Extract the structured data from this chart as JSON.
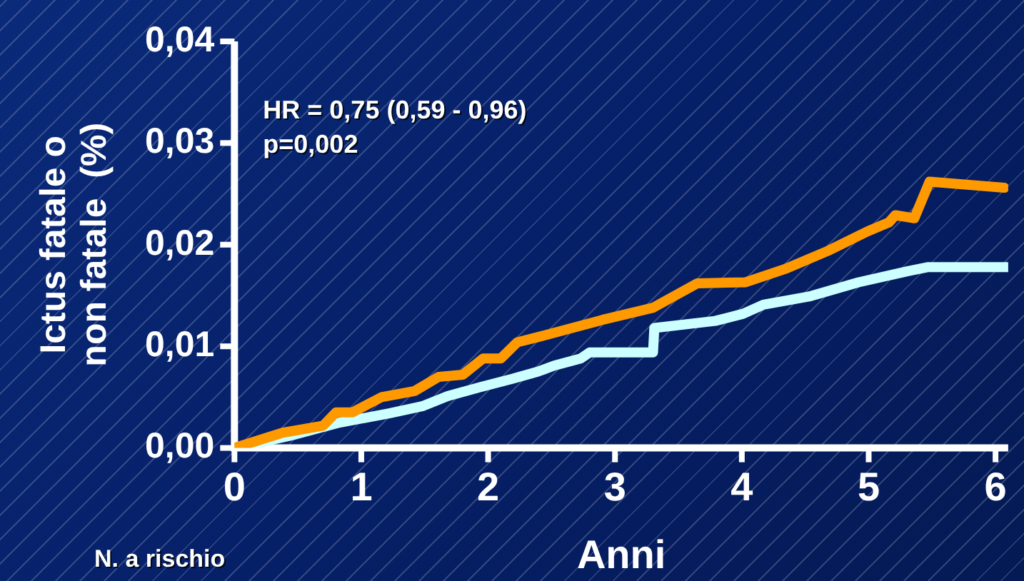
{
  "chart_data": {
    "type": "line",
    "xlabel": "Anni",
    "ylabel": "Ictus fatale o\nnon fatale  (%)",
    "xlim": [
      0,
      6.1
    ],
    "xticks": [
      0,
      1,
      2,
      3,
      4,
      5,
      6
    ],
    "ylim": [
      0,
      0.04
    ],
    "yticks": [
      {
        "value": 0,
        "label": "0,00"
      },
      {
        "value": 0.01,
        "label": "0,01"
      },
      {
        "value": 0.02,
        "label": "0,02"
      },
      {
        "value": 0.03,
        "label": "0,03"
      },
      {
        "value": 0.04,
        "label": "0,04"
      }
    ],
    "grid": false,
    "legend": false,
    "marker": "none",
    "line_style": "solid",
    "annotations": [
      "HR = 0,75 (0,59 - 0,96)\np=0,002",
      "N. a rischio"
    ],
    "series": [
      {
        "color": "#ff9900",
        "x": [
          0,
          0.38,
          0.7,
          0.8,
          0.93,
          1.16,
          1.42,
          1.61,
          1.8,
          1.96,
          2.1,
          2.23,
          2.39,
          2.9,
          3.3,
          3.65,
          4.03,
          4.34,
          4.68,
          4.99,
          5.16,
          5.21,
          5.36,
          5.48,
          6.07
        ],
        "values": [
          0,
          0.0015,
          0.0022,
          0.0035,
          0.0035,
          0.005,
          0.0056,
          0.007,
          0.0072,
          0.0088,
          0.0088,
          0.0104,
          0.0109,
          0.0126,
          0.0138,
          0.0162,
          0.0163,
          0.0176,
          0.0194,
          0.0213,
          0.0222,
          0.0229,
          0.0226,
          0.0262,
          0.0256
        ]
      },
      {
        "color": "#ccffff",
        "x": [
          0,
          0.44,
          0.83,
          1.22,
          1.48,
          1.68,
          1.94,
          2.19,
          2.39,
          2.52,
          2.73,
          2.8,
          3.3,
          3.31,
          3.79,
          4.01,
          4.17,
          4.53,
          4.92,
          5.31,
          5.47,
          6.1
        ],
        "values": [
          0,
          0.0012,
          0.0025,
          0.0034,
          0.0041,
          0.0051,
          0.006,
          0.0068,
          0.0075,
          0.0081,
          0.0088,
          0.0094,
          0.0094,
          0.0118,
          0.0125,
          0.0132,
          0.0141,
          0.0149,
          0.0163,
          0.0174,
          0.0178,
          0.0178
        ]
      }
    ]
  }
}
